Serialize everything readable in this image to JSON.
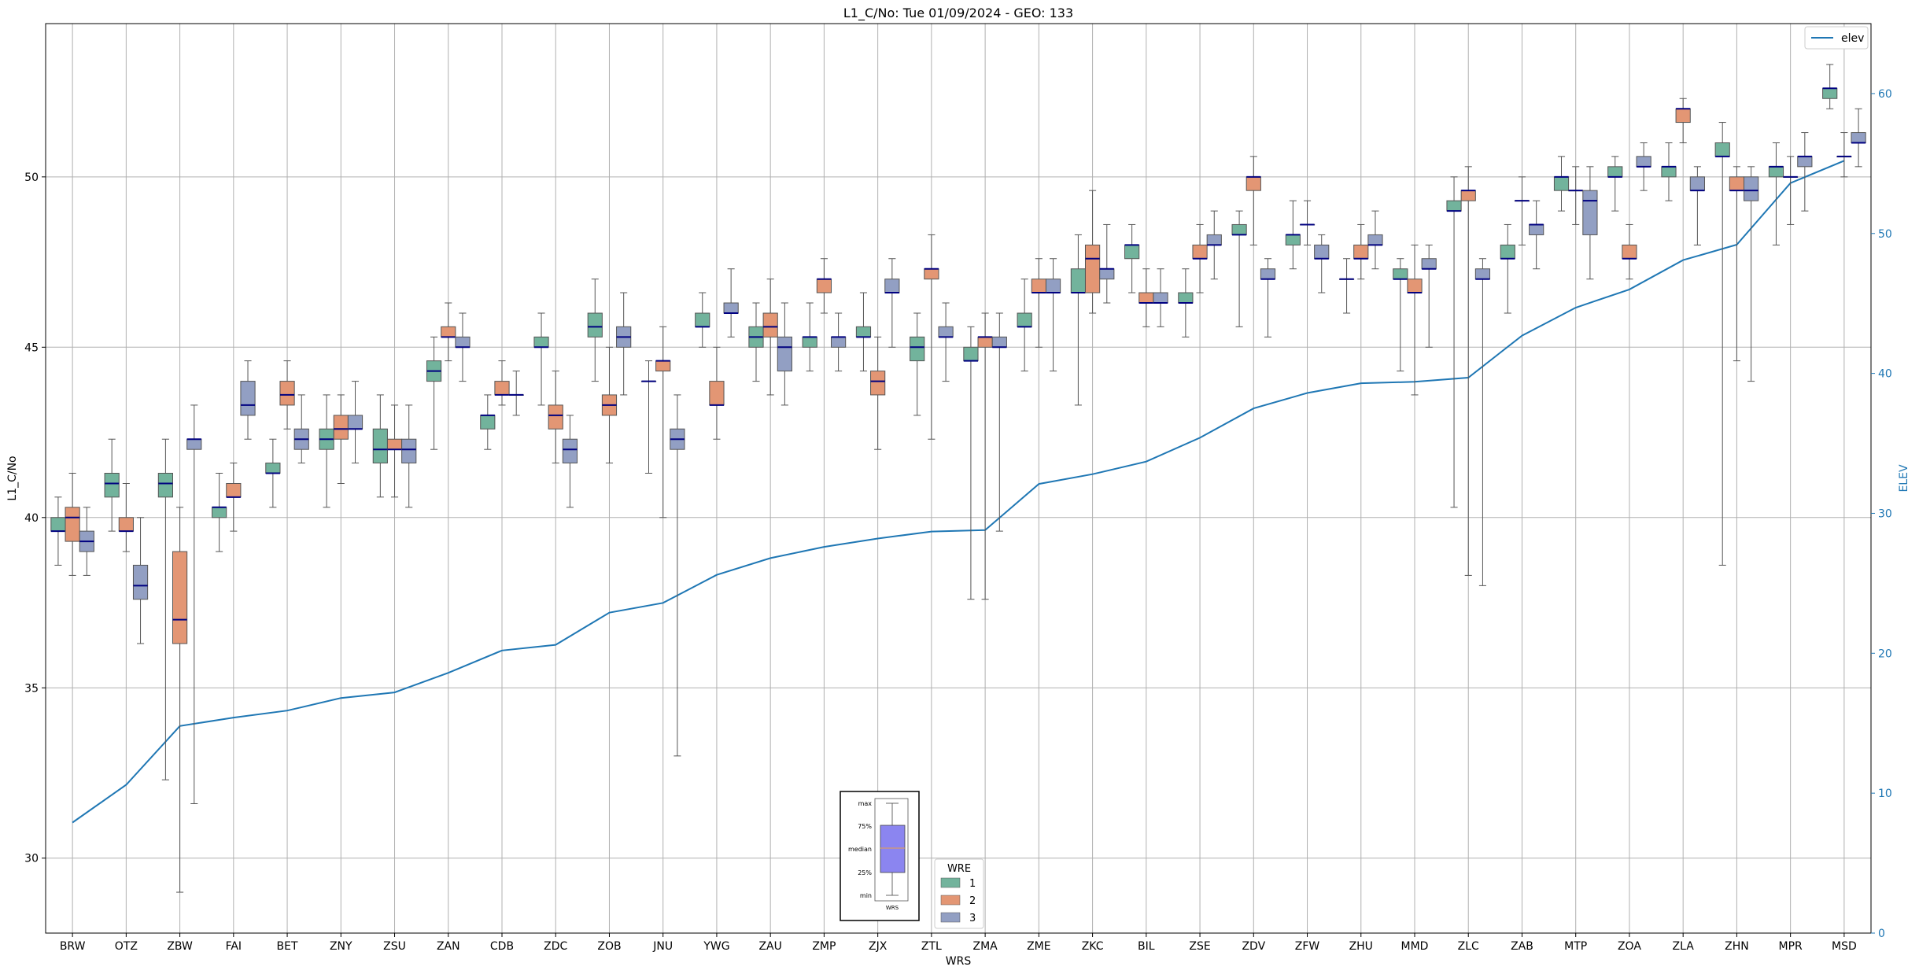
{
  "chart_data": {
    "type": "box",
    "title": "L1_C/No: Tue 01/09/2024 - GEO: 133",
    "xlabel": "WRS",
    "ylabel": "L1_C/No",
    "y2label": "ELEV",
    "ylim": [
      27.8,
      54.5
    ],
    "y2lim": [
      0,
      65
    ],
    "yticks": [
      30,
      35,
      40,
      45,
      50
    ],
    "y2ticks": [
      0,
      10,
      20,
      30,
      40,
      50,
      60
    ],
    "grid": true,
    "categories": [
      "BRW",
      "OTZ",
      "ZBW",
      "FAI",
      "BET",
      "ZNY",
      "ZSU",
      "ZAN",
      "CDB",
      "ZDC",
      "ZOB",
      "JNU",
      "YWG",
      "ZAU",
      "ZMP",
      "ZJX",
      "ZTL",
      "ZMA",
      "ZME",
      "ZKC",
      "BIL",
      "ZSE",
      "ZDV",
      "ZFW",
      "ZHU",
      "MMD",
      "ZLC",
      "ZAB",
      "MTP",
      "ZOA",
      "ZLA",
      "ZHN",
      "MPR",
      "MSD"
    ],
    "hue_legend": {
      "title": "WRE",
      "entries": [
        {
          "label": "1",
          "color": "#72b39c"
        },
        {
          "label": "2",
          "color": "#e39674"
        },
        {
          "label": "3",
          "color": "#929fc3"
        }
      ]
    },
    "line_legend": {
      "label": "elev",
      "color": "#1f77b4",
      "placement": "upper right"
    },
    "key_box": {
      "labels": [
        "max",
        "75%",
        "median",
        "25%",
        "min"
      ],
      "xlabel": "WRS",
      "fill": "#8b85f0"
    },
    "boxes": [
      {
        "cat": "BRW",
        "wre": 1,
        "min": 38.6,
        "q1": 39.6,
        "median": 39.6,
        "q3": 40.0,
        "max": 40.6
      },
      {
        "cat": "BRW",
        "wre": 2,
        "min": 38.3,
        "q1": 39.3,
        "median": 40.0,
        "q3": 40.3,
        "max": 41.3
      },
      {
        "cat": "BRW",
        "wre": 3,
        "min": 38.3,
        "q1": 39.0,
        "median": 39.3,
        "q3": 39.6,
        "max": 40.3
      },
      {
        "cat": "OTZ",
        "wre": 1,
        "min": 39.6,
        "q1": 40.6,
        "median": 41.0,
        "q3": 41.3,
        "max": 42.3
      },
      {
        "cat": "OTZ",
        "wre": 2,
        "min": 39.0,
        "q1": 39.6,
        "median": 39.6,
        "q3": 40.0,
        "max": 41.0
      },
      {
        "cat": "OTZ",
        "wre": 3,
        "min": 36.3,
        "q1": 37.6,
        "median": 38.0,
        "q3": 38.6,
        "max": 40.0
      },
      {
        "cat": "ZBW",
        "wre": 1,
        "min": 32.3,
        "q1": 40.6,
        "median": 41.0,
        "q3": 41.3,
        "max": 42.3
      },
      {
        "cat": "ZBW",
        "wre": 2,
        "min": 29.0,
        "q1": 36.3,
        "median": 37.0,
        "q3": 39.0,
        "max": 40.3
      },
      {
        "cat": "ZBW",
        "wre": 3,
        "min": 31.6,
        "q1": 42.0,
        "median": 42.3,
        "q3": 42.3,
        "max": 43.3
      },
      {
        "cat": "FAI",
        "wre": 1,
        "min": 39.0,
        "q1": 40.0,
        "median": 40.3,
        "q3": 40.3,
        "max": 41.3
      },
      {
        "cat": "FAI",
        "wre": 2,
        "min": 39.6,
        "q1": 40.6,
        "median": 40.6,
        "q3": 41.0,
        "max": 41.6
      },
      {
        "cat": "FAI",
        "wre": 3,
        "min": 42.3,
        "q1": 43.0,
        "median": 43.3,
        "q3": 44.0,
        "max": 44.6
      },
      {
        "cat": "BET",
        "wre": 1,
        "min": 40.3,
        "q1": 41.3,
        "median": 41.3,
        "q3": 41.6,
        "max": 42.3
      },
      {
        "cat": "BET",
        "wre": 2,
        "min": 42.6,
        "q1": 43.3,
        "median": 43.6,
        "q3": 44.0,
        "max": 44.6
      },
      {
        "cat": "BET",
        "wre": 3,
        "min": 41.6,
        "q1": 42.0,
        "median": 42.3,
        "q3": 42.6,
        "max": 43.6
      },
      {
        "cat": "ZNY",
        "wre": 1,
        "min": 40.3,
        "q1": 42.0,
        "median": 42.3,
        "q3": 42.6,
        "max": 43.6
      },
      {
        "cat": "ZNY",
        "wre": 2,
        "min": 41.0,
        "q1": 42.3,
        "median": 42.6,
        "q3": 43.0,
        "max": 43.6
      },
      {
        "cat": "ZNY",
        "wre": 3,
        "min": 41.6,
        "q1": 42.6,
        "median": 42.6,
        "q3": 43.0,
        "max": 44.0
      },
      {
        "cat": "ZSU",
        "wre": 1,
        "min": 40.6,
        "q1": 41.6,
        "median": 42.0,
        "q3": 42.6,
        "max": 43.6
      },
      {
        "cat": "ZSU",
        "wre": 2,
        "min": 40.6,
        "q1": 42.0,
        "median": 42.0,
        "q3": 42.3,
        "max": 43.3
      },
      {
        "cat": "ZSU",
        "wre": 3,
        "min": 40.3,
        "q1": 41.6,
        "median": 42.0,
        "q3": 42.3,
        "max": 43.3
      },
      {
        "cat": "ZAN",
        "wre": 1,
        "min": 42.0,
        "q1": 44.0,
        "median": 44.3,
        "q3": 44.6,
        "max": 45.3
      },
      {
        "cat": "ZAN",
        "wre": 2,
        "min": 44.6,
        "q1": 45.3,
        "median": 45.3,
        "q3": 45.6,
        "max": 46.3
      },
      {
        "cat": "ZAN",
        "wre": 3,
        "min": 44.0,
        "q1": 45.0,
        "median": 45.0,
        "q3": 45.3,
        "max": 46.0
      },
      {
        "cat": "CDB",
        "wre": 1,
        "min": 42.0,
        "q1": 42.6,
        "median": 43.0,
        "q3": 43.0,
        "max": 43.6
      },
      {
        "cat": "CDB",
        "wre": 2,
        "min": 43.3,
        "q1": 43.6,
        "median": 43.6,
        "q3": 44.0,
        "max": 44.6
      },
      {
        "cat": "CDB",
        "wre": 3,
        "min": 43.0,
        "q1": 43.6,
        "median": 43.6,
        "q3": 43.6,
        "max": 44.3
      },
      {
        "cat": "ZDC",
        "wre": 1,
        "min": 43.3,
        "q1": 45.0,
        "median": 45.0,
        "q3": 45.3,
        "max": 46.0
      },
      {
        "cat": "ZDC",
        "wre": 2,
        "min": 41.6,
        "q1": 42.6,
        "median": 43.0,
        "q3": 43.3,
        "max": 44.3
      },
      {
        "cat": "ZDC",
        "wre": 3,
        "min": 40.3,
        "q1": 41.6,
        "median": 42.0,
        "q3": 42.3,
        "max": 43.0
      },
      {
        "cat": "ZOB",
        "wre": 1,
        "min": 44.0,
        "q1": 45.3,
        "median": 45.6,
        "q3": 46.0,
        "max": 47.0
      },
      {
        "cat": "ZOB",
        "wre": 2,
        "min": 41.6,
        "q1": 43.0,
        "median": 43.3,
        "q3": 43.6,
        "max": 45.0
      },
      {
        "cat": "ZOB",
        "wre": 3,
        "min": 43.6,
        "q1": 45.0,
        "median": 45.3,
        "q3": 45.6,
        "max": 46.6
      },
      {
        "cat": "JNU",
        "wre": 1,
        "min": 41.3,
        "q1": 44.0,
        "median": 44.0,
        "q3": 44.0,
        "max": 44.6
      },
      {
        "cat": "JNU",
        "wre": 2,
        "min": 40.0,
        "q1": 44.3,
        "median": 44.6,
        "q3": 44.6,
        "max": 45.6
      },
      {
        "cat": "JNU",
        "wre": 3,
        "min": 33.0,
        "q1": 42.0,
        "median": 42.3,
        "q3": 42.6,
        "max": 43.6
      },
      {
        "cat": "YWG",
        "wre": 1,
        "min": 45.0,
        "q1": 45.6,
        "median": 45.6,
        "q3": 46.0,
        "max": 46.6
      },
      {
        "cat": "YWG",
        "wre": 2,
        "min": 42.3,
        "q1": 43.3,
        "median": 43.3,
        "q3": 44.0,
        "max": 45.0
      },
      {
        "cat": "YWG",
        "wre": 3,
        "min": 45.3,
        "q1": 46.0,
        "median": 46.0,
        "q3": 46.3,
        "max": 47.3
      },
      {
        "cat": "ZAU",
        "wre": 1,
        "min": 44.0,
        "q1": 45.0,
        "median": 45.3,
        "q3": 45.6,
        "max": 46.3
      },
      {
        "cat": "ZAU",
        "wre": 2,
        "min": 43.6,
        "q1": 45.3,
        "median": 45.6,
        "q3": 46.0,
        "max": 47.0
      },
      {
        "cat": "ZAU",
        "wre": 3,
        "min": 43.3,
        "q1": 44.3,
        "median": 45.0,
        "q3": 45.3,
        "max": 46.3
      },
      {
        "cat": "ZMP",
        "wre": 1,
        "min": 44.3,
        "q1": 45.0,
        "median": 45.3,
        "q3": 45.3,
        "max": 46.3
      },
      {
        "cat": "ZMP",
        "wre": 2,
        "min": 46.0,
        "q1": 46.6,
        "median": 47.0,
        "q3": 47.0,
        "max": 47.6
      },
      {
        "cat": "ZMP",
        "wre": 3,
        "min": 44.3,
        "q1": 45.0,
        "median": 45.3,
        "q3": 45.3,
        "max": 46.0
      },
      {
        "cat": "ZJX",
        "wre": 1,
        "min": 44.3,
        "q1": 45.3,
        "median": 45.3,
        "q3": 45.6,
        "max": 46.6
      },
      {
        "cat": "ZJX",
        "wre": 2,
        "min": 42.0,
        "q1": 43.6,
        "median": 44.0,
        "q3": 44.3,
        "max": 45.3
      },
      {
        "cat": "ZJX",
        "wre": 3,
        "min": 45.0,
        "q1": 46.6,
        "median": 46.6,
        "q3": 47.0,
        "max": 47.6
      },
      {
        "cat": "ZTL",
        "wre": 1,
        "min": 43.0,
        "q1": 44.6,
        "median": 45.0,
        "q3": 45.3,
        "max": 46.0
      },
      {
        "cat": "ZTL",
        "wre": 2,
        "min": 42.3,
        "q1": 47.0,
        "median": 47.3,
        "q3": 47.3,
        "max": 48.3
      },
      {
        "cat": "ZTL",
        "wre": 3,
        "min": 44.0,
        "q1": 45.3,
        "median": 45.3,
        "q3": 45.6,
        "max": 46.3
      },
      {
        "cat": "ZMA",
        "wre": 1,
        "min": 37.6,
        "q1": 44.6,
        "median": 44.6,
        "q3": 45.0,
        "max": 45.6
      },
      {
        "cat": "ZMA",
        "wre": 2,
        "min": 37.6,
        "q1": 45.0,
        "median": 45.3,
        "q3": 45.3,
        "max": 46.0
      },
      {
        "cat": "ZMA",
        "wre": 3,
        "min": 39.6,
        "q1": 45.0,
        "median": 45.0,
        "q3": 45.3,
        "max": 46.0
      },
      {
        "cat": "ZME",
        "wre": 1,
        "min": 44.3,
        "q1": 45.6,
        "median": 45.6,
        "q3": 46.0,
        "max": 47.0
      },
      {
        "cat": "ZME",
        "wre": 2,
        "min": 45.0,
        "q1": 46.6,
        "median": 46.6,
        "q3": 47.0,
        "max": 47.6
      },
      {
        "cat": "ZME",
        "wre": 3,
        "min": 44.3,
        "q1": 46.6,
        "median": 46.6,
        "q3": 47.0,
        "max": 47.6
      },
      {
        "cat": "ZKC",
        "wre": 1,
        "min": 43.3,
        "q1": 46.6,
        "median": 46.6,
        "q3": 47.3,
        "max": 48.3
      },
      {
        "cat": "ZKC",
        "wre": 2,
        "min": 46.0,
        "q1": 46.6,
        "median": 47.6,
        "q3": 48.0,
        "max": 49.6
      },
      {
        "cat": "ZKC",
        "wre": 3,
        "min": 46.3,
        "q1": 47.0,
        "median": 47.3,
        "q3": 47.3,
        "max": 48.6
      },
      {
        "cat": "BIL",
        "wre": 1,
        "min": 46.6,
        "q1": 47.6,
        "median": 48.0,
        "q3": 48.0,
        "max": 48.6
      },
      {
        "cat": "BIL",
        "wre": 2,
        "min": 45.6,
        "q1": 46.3,
        "median": 46.3,
        "q3": 46.6,
        "max": 47.3
      },
      {
        "cat": "BIL",
        "wre": 3,
        "min": 45.6,
        "q1": 46.3,
        "median": 46.3,
        "q3": 46.6,
        "max": 47.3
      },
      {
        "cat": "ZSE",
        "wre": 1,
        "min": 45.3,
        "q1": 46.3,
        "median": 46.3,
        "q3": 46.6,
        "max": 47.3
      },
      {
        "cat": "ZSE",
        "wre": 2,
        "min": 46.6,
        "q1": 47.6,
        "median": 47.6,
        "q3": 48.0,
        "max": 48.6
      },
      {
        "cat": "ZSE",
        "wre": 3,
        "min": 47.0,
        "q1": 48.0,
        "median": 48.0,
        "q3": 48.3,
        "max": 49.0
      },
      {
        "cat": "ZDV",
        "wre": 1,
        "min": 45.6,
        "q1": 48.3,
        "median": 48.3,
        "q3": 48.6,
        "max": 49.0
      },
      {
        "cat": "ZDV",
        "wre": 2,
        "min": 48.0,
        "q1": 49.6,
        "median": 50.0,
        "q3": 50.0,
        "max": 50.6
      },
      {
        "cat": "ZDV",
        "wre": 3,
        "min": 45.3,
        "q1": 47.0,
        "median": 47.0,
        "q3": 47.3,
        "max": 47.6
      },
      {
        "cat": "ZFW",
        "wre": 1,
        "min": 47.3,
        "q1": 48.0,
        "median": 48.3,
        "q3": 48.3,
        "max": 49.3
      },
      {
        "cat": "ZFW",
        "wre": 2,
        "min": 48.0,
        "q1": 48.6,
        "median": 48.6,
        "q3": 48.6,
        "max": 49.3
      },
      {
        "cat": "ZFW",
        "wre": 3,
        "min": 46.6,
        "q1": 47.6,
        "median": 47.6,
        "q3": 48.0,
        "max": 48.3
      },
      {
        "cat": "ZHU",
        "wre": 1,
        "min": 46.0,
        "q1": 47.0,
        "median": 47.0,
        "q3": 47.0,
        "max": 47.6
      },
      {
        "cat": "ZHU",
        "wre": 2,
        "min": 47.0,
        "q1": 47.6,
        "median": 47.6,
        "q3": 48.0,
        "max": 48.6
      },
      {
        "cat": "ZHU",
        "wre": 3,
        "min": 47.3,
        "q1": 48.0,
        "median": 48.0,
        "q3": 48.3,
        "max": 49.0
      },
      {
        "cat": "MMD",
        "wre": 1,
        "min": 44.3,
        "q1": 47.0,
        "median": 47.0,
        "q3": 47.3,
        "max": 47.6
      },
      {
        "cat": "MMD",
        "wre": 2,
        "min": 43.6,
        "q1": 46.6,
        "median": 46.6,
        "q3": 47.0,
        "max": 48.0
      },
      {
        "cat": "MMD",
        "wre": 3,
        "min": 45.0,
        "q1": 47.3,
        "median": 47.3,
        "q3": 47.6,
        "max": 48.0
      },
      {
        "cat": "ZLC",
        "wre": 1,
        "min": 40.3,
        "q1": 49.0,
        "median": 49.0,
        "q3": 49.3,
        "max": 50.0
      },
      {
        "cat": "ZLC",
        "wre": 2,
        "min": 38.3,
        "q1": 49.3,
        "median": 49.6,
        "q3": 49.6,
        "max": 50.3
      },
      {
        "cat": "ZLC",
        "wre": 3,
        "min": 38.0,
        "q1": 47.0,
        "median": 47.0,
        "q3": 47.3,
        "max": 47.6
      },
      {
        "cat": "ZAB",
        "wre": 1,
        "min": 46.0,
        "q1": 47.6,
        "median": 47.6,
        "q3": 48.0,
        "max": 48.6
      },
      {
        "cat": "ZAB",
        "wre": 2,
        "min": 48.0,
        "q1": 49.3,
        "median": 49.3,
        "q3": 49.3,
        "max": 50.0
      },
      {
        "cat": "ZAB",
        "wre": 3,
        "min": 47.3,
        "q1": 48.3,
        "median": 48.6,
        "q3": 48.6,
        "max": 49.3
      },
      {
        "cat": "MTP",
        "wre": 1,
        "min": 49.0,
        "q1": 49.6,
        "median": 50.0,
        "q3": 50.0,
        "max": 50.6
      },
      {
        "cat": "MTP",
        "wre": 2,
        "min": 48.6,
        "q1": 49.6,
        "median": 49.6,
        "q3": 49.6,
        "max": 50.3
      },
      {
        "cat": "MTP",
        "wre": 3,
        "min": 47.0,
        "q1": 48.3,
        "median": 49.3,
        "q3": 49.6,
        "max": 50.3
      },
      {
        "cat": "ZOA",
        "wre": 1,
        "min": 49.0,
        "q1": 50.0,
        "median": 50.0,
        "q3": 50.3,
        "max": 50.6
      },
      {
        "cat": "ZOA",
        "wre": 2,
        "min": 47.0,
        "q1": 47.6,
        "median": 47.6,
        "q3": 48.0,
        "max": 48.6
      },
      {
        "cat": "ZOA",
        "wre": 3,
        "min": 49.6,
        "q1": 50.3,
        "median": 50.3,
        "q3": 50.6,
        "max": 51.0
      },
      {
        "cat": "ZLA",
        "wre": 1,
        "min": 49.3,
        "q1": 50.0,
        "median": 50.3,
        "q3": 50.3,
        "max": 51.0
      },
      {
        "cat": "ZLA",
        "wre": 2,
        "min": 51.0,
        "q1": 51.6,
        "median": 52.0,
        "q3": 52.0,
        "max": 52.3
      },
      {
        "cat": "ZLA",
        "wre": 3,
        "min": 48.0,
        "q1": 49.6,
        "median": 49.6,
        "q3": 50.0,
        "max": 50.3
      },
      {
        "cat": "ZHN",
        "wre": 1,
        "min": 38.6,
        "q1": 50.6,
        "median": 50.6,
        "q3": 51.0,
        "max": 51.6
      },
      {
        "cat": "ZHN",
        "wre": 2,
        "min": 44.6,
        "q1": 49.6,
        "median": 49.6,
        "q3": 50.0,
        "max": 50.3
      },
      {
        "cat": "ZHN",
        "wre": 3,
        "min": 44.0,
        "q1": 49.3,
        "median": 49.6,
        "q3": 50.0,
        "max": 50.3
      },
      {
        "cat": "MPR",
        "wre": 1,
        "min": 48.0,
        "q1": 50.0,
        "median": 50.3,
        "q3": 50.3,
        "max": 51.0
      },
      {
        "cat": "MPR",
        "wre": 2,
        "min": 48.6,
        "q1": 50.0,
        "median": 50.0,
        "q3": 50.0,
        "max": 50.6
      },
      {
        "cat": "MPR",
        "wre": 3,
        "min": 49.0,
        "q1": 50.3,
        "median": 50.6,
        "q3": 50.6,
        "max": 51.3
      },
      {
        "cat": "MSD",
        "wre": 1,
        "min": 52.0,
        "q1": 52.3,
        "median": 52.6,
        "q3": 52.6,
        "max": 53.3
      },
      {
        "cat": "MSD",
        "wre": 2,
        "min": 50.0,
        "q1": 50.6,
        "median": 50.6,
        "q3": 50.6,
        "max": 51.3
      },
      {
        "cat": "MSD",
        "wre": 3,
        "min": 50.3,
        "q1": 51.0,
        "median": 51.0,
        "q3": 51.3,
        "max": 52.0
      }
    ],
    "elev": {
      "name": "elev",
      "values": [
        7.9,
        10.6,
        14.8,
        15.4,
        15.9,
        16.8,
        17.2,
        18.6,
        20.2,
        20.6,
        22.9,
        23.6,
        25.6,
        26.8,
        27.6,
        28.2,
        28.7,
        28.8,
        32.1,
        32.8,
        33.7,
        35.4,
        37.5,
        38.6,
        39.3,
        39.4,
        39.7,
        42.7,
        44.7,
        46.0,
        48.1,
        49.2,
        53.6,
        55.2
      ]
    }
  }
}
